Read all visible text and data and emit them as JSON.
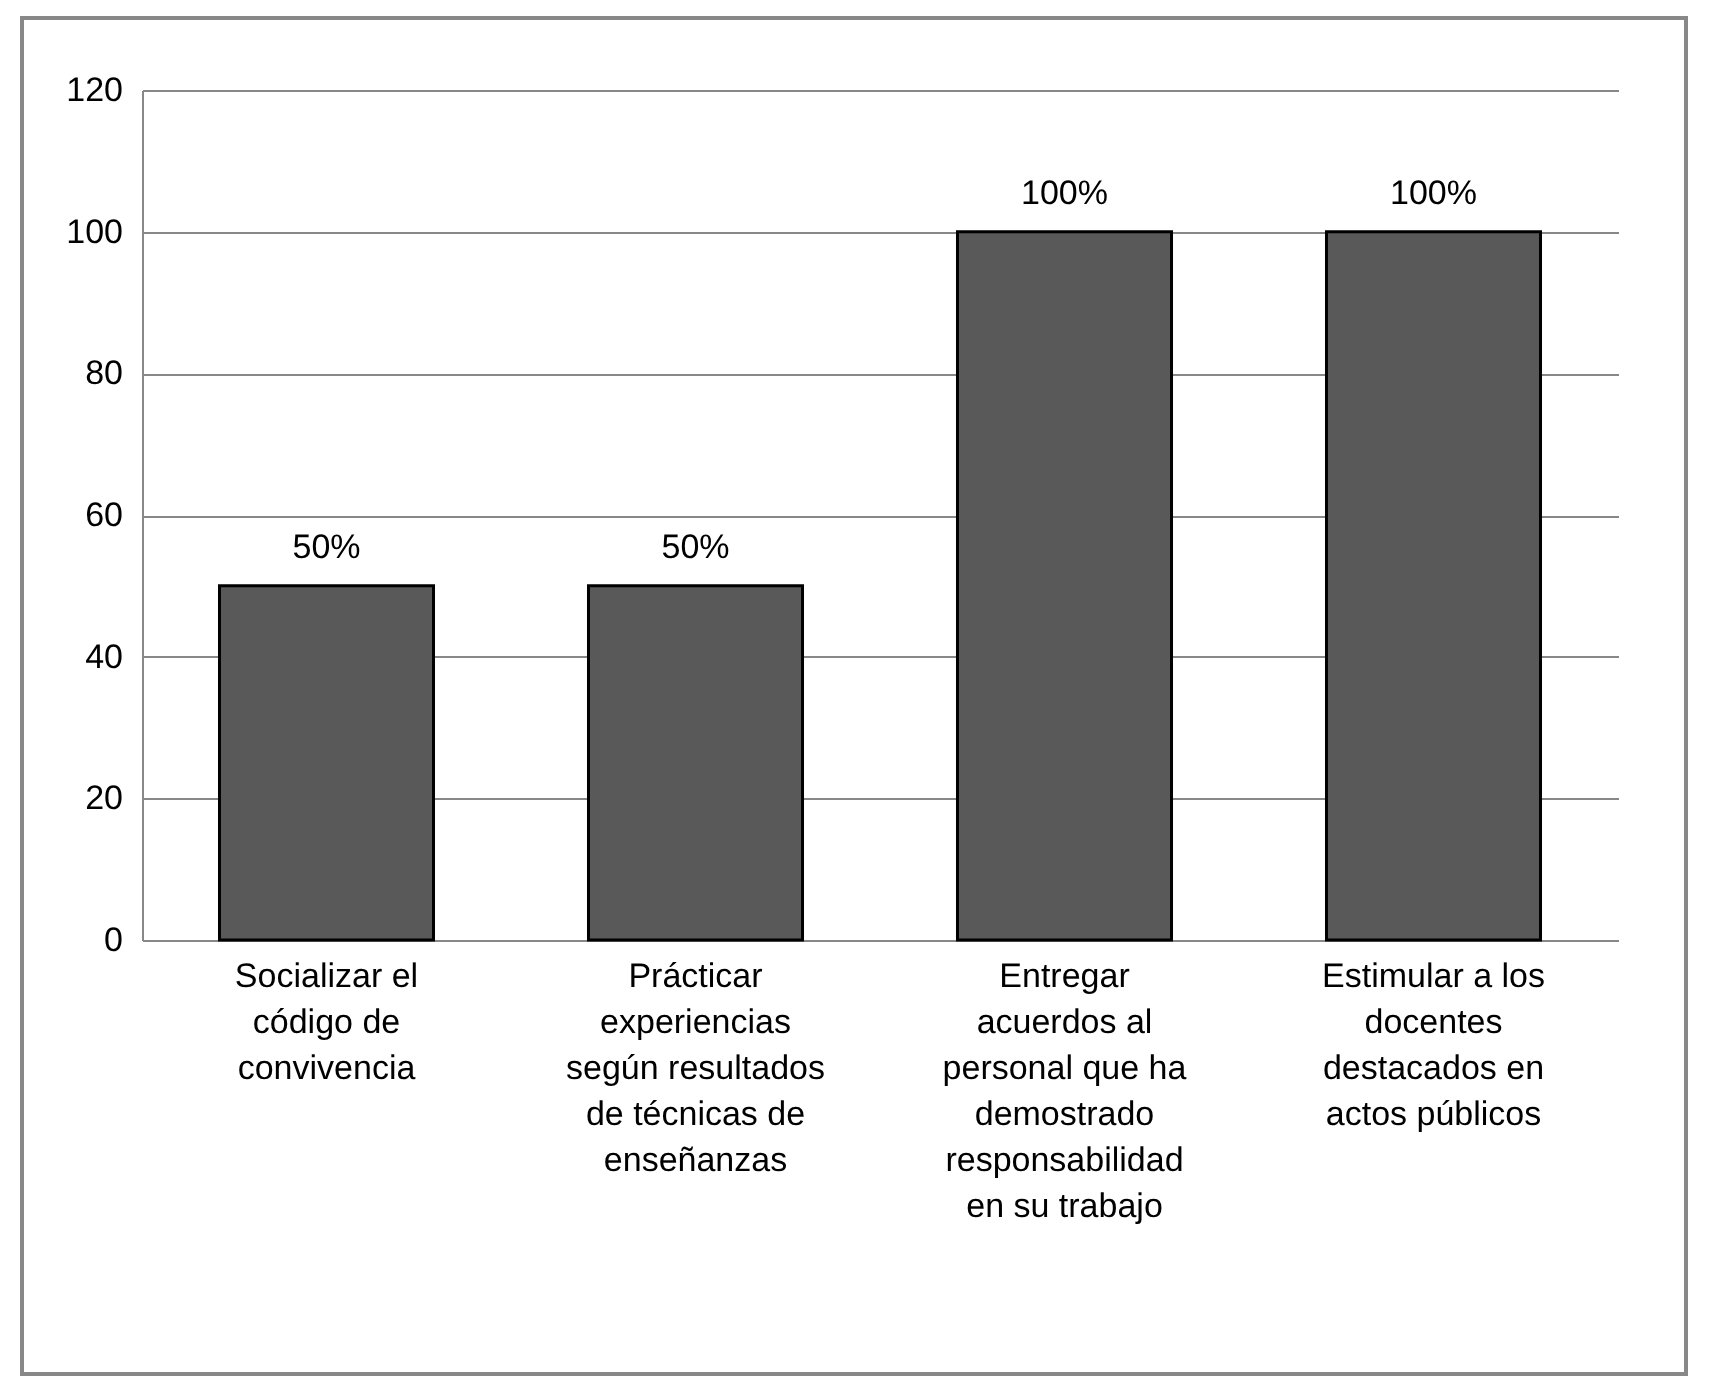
{
  "chart_data": {
    "type": "bar",
    "categories": [
      "Socializar el código de convivencia",
      "Prácticar experiencias según resultados de técnicas de enseñanzas",
      "Entregar acuerdos al personal que ha demostrado responsabilidad en su trabajo",
      "Estimular a los docentes destacados en actos públicos"
    ],
    "values": [
      50,
      50,
      100,
      100
    ],
    "value_labels": [
      "50%",
      "50%",
      "100%",
      "100%"
    ],
    "color": "#595959",
    "ylim": [
      0,
      120
    ],
    "yticks": [
      0,
      20,
      40,
      60,
      80,
      100,
      120
    ],
    "grid": "y"
  }
}
